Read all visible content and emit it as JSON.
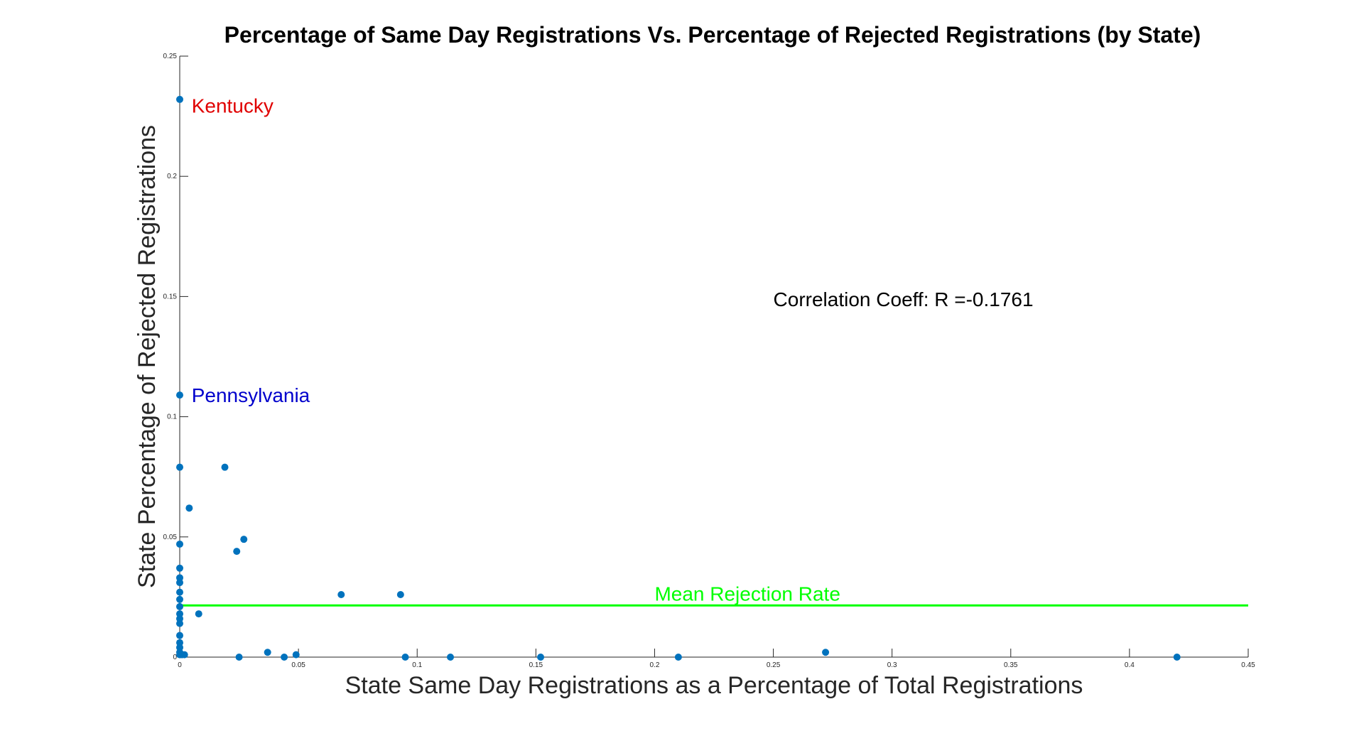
{
  "chart_data": {
    "type": "scatter",
    "title": "Percentage of Same Day Registrations Vs. Percentage of Rejected Registrations (by State)",
    "xlabel": "State Same Day Registrations as a Percentage of Total Registrations",
    "ylabel": "State Percentage of Rejected Registrations",
    "xlim": [
      0,
      0.45
    ],
    "ylim": [
      0,
      0.25
    ],
    "xticks": [
      0,
      0.05,
      0.1,
      0.15,
      0.2,
      0.25,
      0.3,
      0.35,
      0.4,
      0.45
    ],
    "yticks": [
      0,
      0.05,
      0.1,
      0.15,
      0.2,
      0.25
    ],
    "xtick_labels": [
      "0",
      "0.05",
      "0.1",
      "0.15",
      "0.2",
      "0.25",
      "0.3",
      "0.35",
      "0.4",
      "0.45"
    ],
    "ytick_labels": [
      "0",
      "0.05",
      "0.1",
      "0.15",
      "0.2",
      "0.25"
    ],
    "grid": false,
    "marker_color": "#0072BD",
    "points": [
      {
        "x": 0,
        "y": 0.232
      },
      {
        "x": 0,
        "y": 0.109
      },
      {
        "x": 0,
        "y": 0.079
      },
      {
        "x": 0,
        "y": 0.047
      },
      {
        "x": 0,
        "y": 0.037
      },
      {
        "x": 0,
        "y": 0.033
      },
      {
        "x": 0,
        "y": 0.031
      },
      {
        "x": 0,
        "y": 0.027
      },
      {
        "x": 0,
        "y": 0.024
      },
      {
        "x": 0,
        "y": 0.021
      },
      {
        "x": 0,
        "y": 0.018
      },
      {
        "x": 0,
        "y": 0.016
      },
      {
        "x": 0,
        "y": 0.014
      },
      {
        "x": 0,
        "y": 0.009
      },
      {
        "x": 0,
        "y": 0.006
      },
      {
        "x": 0,
        "y": 0.004
      },
      {
        "x": 0,
        "y": 0.002
      },
      {
        "x": 0,
        "y": 0.001
      },
      {
        "x": 0.001,
        "y": 0.001
      },
      {
        "x": 0.002,
        "y": 0.001
      },
      {
        "x": 0.004,
        "y": 0.062
      },
      {
        "x": 0.008,
        "y": 0.018
      },
      {
        "x": 0.019,
        "y": 0.079
      },
      {
        "x": 0.024,
        "y": 0.044
      },
      {
        "x": 0.025,
        "y": 0.0
      },
      {
        "x": 0.027,
        "y": 0.049
      },
      {
        "x": 0.037,
        "y": 0.002
      },
      {
        "x": 0.044,
        "y": 0.0
      },
      {
        "x": 0.049,
        "y": 0.001
      },
      {
        "x": 0.068,
        "y": 0.026
      },
      {
        "x": 0.093,
        "y": 0.026
      },
      {
        "x": 0.095,
        "y": 0.0
      },
      {
        "x": 0.114,
        "y": 0.0
      },
      {
        "x": 0.152,
        "y": 0.0
      },
      {
        "x": 0.21,
        "y": 0.0
      },
      {
        "x": 0.272,
        "y": 0.002
      },
      {
        "x": 0.42,
        "y": 0.0
      }
    ],
    "mean_line": {
      "y": 0.0215,
      "x_range": [
        0,
        0.45
      ],
      "color": "#00FF00",
      "label": "Mean Rejection Rate",
      "label_x": 0.2,
      "label_y": 0.0235
    },
    "annotations": [
      {
        "text": "Kentucky",
        "x": 0.005,
        "y": 0.2295,
        "color": "#E00000"
      },
      {
        "text": "Pennsylvania",
        "x": 0.005,
        "y": 0.109,
        "color": "#0000CC"
      },
      {
        "text": "Correlation Coeff: R =-0.1761",
        "x": 0.25,
        "y": 0.149,
        "color": "#000000"
      }
    ]
  }
}
